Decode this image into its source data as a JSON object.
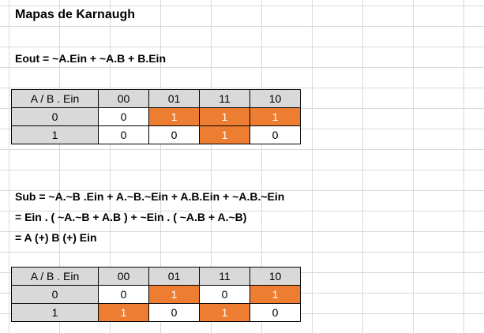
{
  "title": "Mapas de Karnaugh",
  "eout": "Eout = ~A.Ein + ~A.B + B.Ein",
  "table1": {
    "corner": "A / B . Ein",
    "cols": [
      "00",
      "01",
      "11",
      "10"
    ],
    "rows": [
      {
        "label": "0",
        "cells": [
          "0",
          "1",
          "1",
          "1"
        ],
        "highlight": [
          false,
          true,
          true,
          true
        ]
      },
      {
        "label": "1",
        "cells": [
          "0",
          "0",
          "1",
          "0"
        ],
        "highlight": [
          false,
          false,
          true,
          false
        ]
      }
    ]
  },
  "sub_lines": [
    "Sub = ~A.~B .Ein  +  A.~B.~Ein  +  A.B.Ein  +  ~A.B.~Ein",
    "= Ein . ( ~A.~B + A.B )  +  ~Ein . ( ~A.B + A.~B)",
    "= A (+) B (+) Ein"
  ],
  "table2": {
    "corner": "A / B . Ein",
    "cols": [
      "00",
      "01",
      "11",
      "10"
    ],
    "rows": [
      {
        "label": "0",
        "cells": [
          "0",
          "1",
          "0",
          "1"
        ],
        "highlight": [
          false,
          true,
          false,
          true
        ]
      },
      {
        "label": "1",
        "cells": [
          "1",
          "0",
          "1",
          "0"
        ],
        "highlight": [
          true,
          false,
          true,
          false
        ]
      }
    ]
  },
  "colors": {
    "highlight": "#ed7d31",
    "header": "#d9d9d9",
    "gridline": "#d9d9d9"
  }
}
